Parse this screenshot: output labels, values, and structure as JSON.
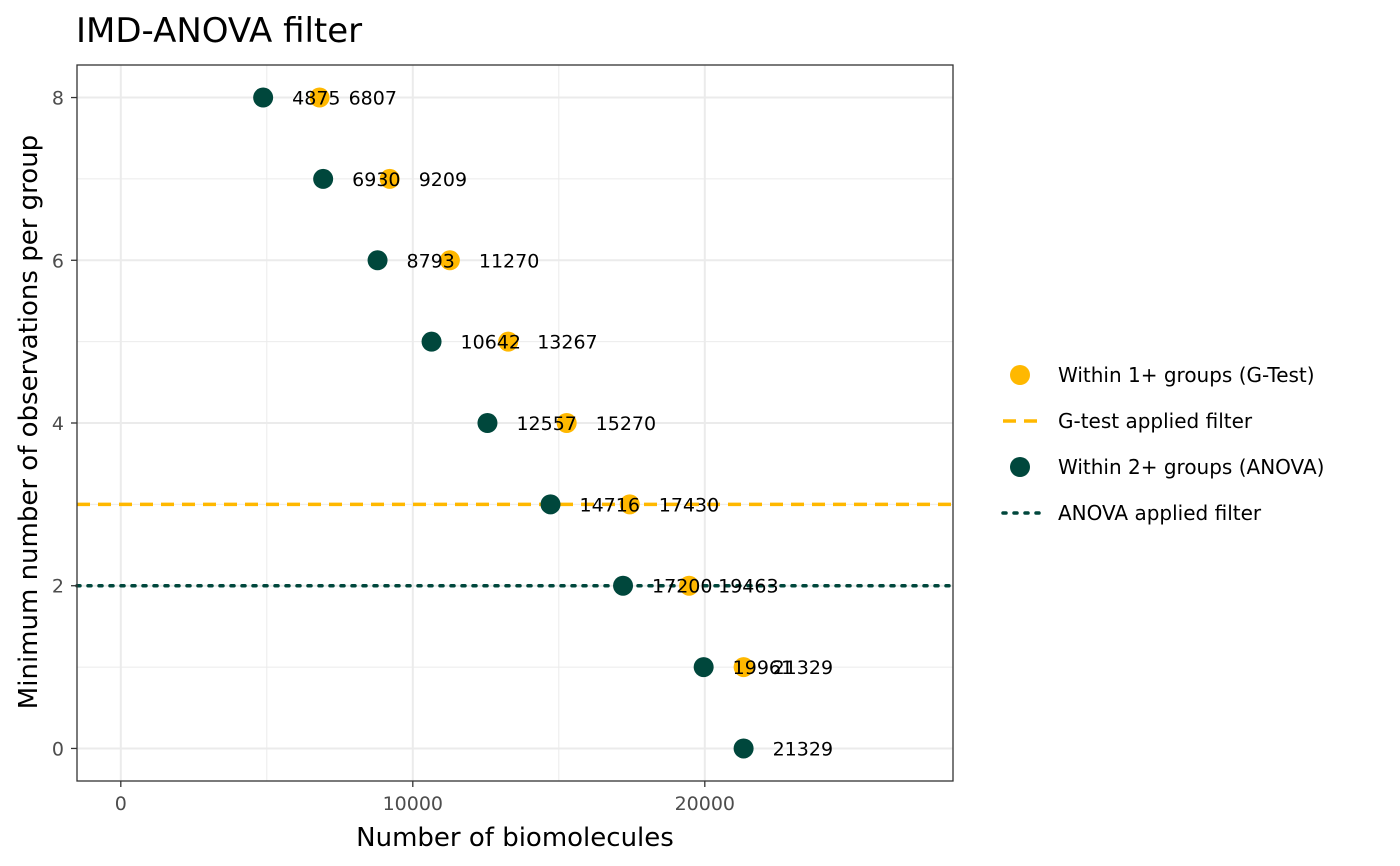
{
  "chart_data": {
    "type": "scatter",
    "title": "IMD-ANOVA filter",
    "xlabel": "Number of biomolecules",
    "ylabel": "Minimum number of observations per group",
    "xlim": [
      -1500,
      28500
    ],
    "ylim": [
      -0.4,
      8.4
    ],
    "x_ticks": [
      0,
      10000,
      20000
    ],
    "x_tick_labels": [
      "0",
      "10000",
      "20000"
    ],
    "y_ticks": [
      0,
      2,
      4,
      6,
      8
    ],
    "y_tick_labels": [
      "0",
      "2",
      "4",
      "6",
      "8"
    ],
    "grid": true,
    "legend_position": "right",
    "series": [
      {
        "name": "Within 1+ groups (G-Test)",
        "color": "#FFB800",
        "points": [
          {
            "x": 6807,
            "y": 8,
            "label": "6807"
          },
          {
            "x": 9209,
            "y": 7,
            "label": "9209"
          },
          {
            "x": 11270,
            "y": 6,
            "label": "11270"
          },
          {
            "x": 13267,
            "y": 5,
            "label": "13267"
          },
          {
            "x": 15270,
            "y": 4,
            "label": "15270"
          },
          {
            "x": 17430,
            "y": 3,
            "label": "17430"
          },
          {
            "x": 19463,
            "y": 2,
            "label": "19463"
          },
          {
            "x": 21329,
            "y": 1,
            "label": "21329"
          }
        ]
      },
      {
        "name": "Within 2+ groups (ANOVA)",
        "color": "#00473C",
        "points": [
          {
            "x": 4875,
            "y": 8,
            "label": "4875"
          },
          {
            "x": 6930,
            "y": 7,
            "label": "6930"
          },
          {
            "x": 8793,
            "y": 6,
            "label": "8793"
          },
          {
            "x": 10642,
            "y": 5,
            "label": "10642"
          },
          {
            "x": 12557,
            "y": 4,
            "label": "12557"
          },
          {
            "x": 14716,
            "y": 3,
            "label": "14716"
          },
          {
            "x": 17200,
            "y": 2,
            "label": "17200"
          },
          {
            "x": 19961,
            "y": 1,
            "label": "19961"
          },
          {
            "x": 21329,
            "y": 0,
            "label": "21329"
          }
        ]
      }
    ],
    "filters": [
      {
        "name": "G-test applied filter",
        "y": 3,
        "style": "dashed",
        "color": "#FFB800"
      },
      {
        "name": "ANOVA applied filter",
        "y": 2,
        "style": "dotted",
        "color": "#00473C"
      }
    ],
    "legend": [
      {
        "label": "Within 1+ groups (G-Test)",
        "kind": "point",
        "color": "#FFB800"
      },
      {
        "label": "G-test applied filter",
        "kind": "dashed",
        "color": "#FFB800"
      },
      {
        "label": "Within 2+ groups (ANOVA)",
        "kind": "point",
        "color": "#00473C"
      },
      {
        "label": "ANOVA applied filter",
        "kind": "dotted",
        "color": "#00473C"
      }
    ]
  }
}
